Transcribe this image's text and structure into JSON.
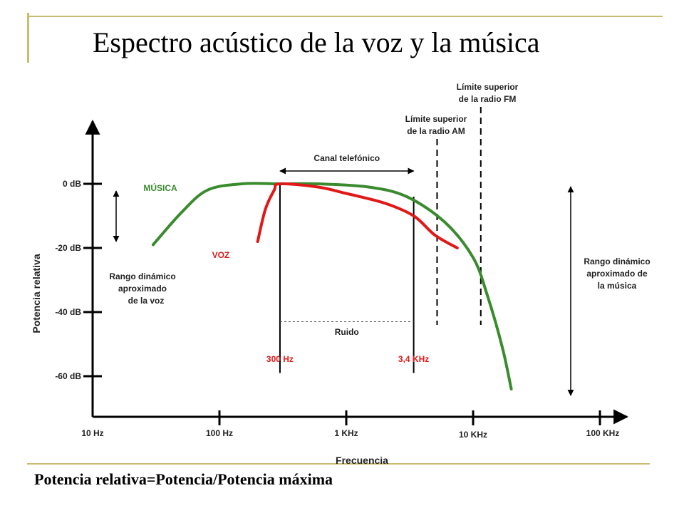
{
  "slide": {
    "title": "Espectro acústico de la voz y la música",
    "footer": "Potencia relativa=Potencia/Potencia máxima",
    "colors": {
      "decoration": "#c9bc6e",
      "music": "#3a8a2e",
      "voice": "#e01818",
      "axis": "#000000"
    }
  },
  "chart_data": {
    "type": "line",
    "title": "Espectro acústico de la voz y la música",
    "xlabel": "Frecuencia",
    "ylabel": "Potencia relativa",
    "x_scale": "log",
    "x_ticks": [
      {
        "value": 10,
        "label": "10 Hz"
      },
      {
        "value": 100,
        "label": "100 Hz"
      },
      {
        "value": 1000,
        "label": "1 KHz"
      },
      {
        "value": 10000,
        "label": "10 KHz"
      },
      {
        "value": 100000,
        "label": "100 KHz"
      }
    ],
    "y_ticks": [
      {
        "value": 0,
        "label": "0 dB"
      },
      {
        "value": -20,
        "label": "-20 dB"
      },
      {
        "value": -40,
        "label": "-40 dB"
      },
      {
        "value": -60,
        "label": "-60 dB"
      }
    ],
    "xlim": [
      10,
      110000
    ],
    "ylim": [
      -72,
      28
    ],
    "series": [
      {
        "name": "MÚSICA",
        "color": "#3a8a2e",
        "points": [
          [
            30,
            -19
          ],
          [
            50,
            -9
          ],
          [
            80,
            -2
          ],
          [
            150,
            0
          ],
          [
            300,
            0
          ],
          [
            600,
            0
          ],
          [
            1500,
            -1
          ],
          [
            3000,
            -4
          ],
          [
            6000,
            -12
          ],
          [
            10000,
            -23
          ],
          [
            13000,
            -35
          ],
          [
            17000,
            -51
          ],
          [
            20000,
            -64
          ]
        ]
      },
      {
        "name": "VOZ",
        "color": "#e01818",
        "points": [
          [
            200,
            -18
          ],
          [
            230,
            -8
          ],
          [
            270,
            -2
          ],
          [
            300,
            0
          ],
          [
            600,
            -1
          ],
          [
            1000,
            -3
          ],
          [
            2000,
            -6
          ],
          [
            3400,
            -10
          ],
          [
            5000,
            -16
          ],
          [
            7500,
            -20
          ]
        ]
      }
    ],
    "vertical_markers": [
      {
        "x": 300,
        "label": "300 Hz",
        "color": "#e01818",
        "y_from": -59,
        "y_to": 0
      },
      {
        "x": 3400,
        "label": "3,4 KHz",
        "color": "#e01818",
        "y_from": -59,
        "y_to": -4
      }
    ],
    "dashed_limits": [
      {
        "x": 5200,
        "label_lines": [
          "Límite superior",
          "de la radio AM"
        ],
        "y_from": -44,
        "y_to": 14
      },
      {
        "x": 11500,
        "label_lines": [
          "Límite superior",
          "de la radio FM"
        ],
        "y_from": -44,
        "y_to": 24
      }
    ],
    "bands": [
      {
        "label": "Canal telefónico",
        "x_from": 300,
        "x_to": 3400,
        "y": 4
      },
      {
        "label": "Ruido",
        "x_from": 300,
        "x_to": 3400,
        "y": -43
      }
    ],
    "annotations": {
      "music_label": "MÚSICA",
      "voice_label": "VOZ",
      "voice_range": {
        "lines": [
          "Rango dinámico",
          "aproximado",
          "de la voz"
        ],
        "y_from": 0,
        "y_to": -18
      },
      "music_range": {
        "lines": [
          "Rango dinámico",
          "aproximado de",
          "la música"
        ],
        "y_from": 0,
        "y_to": -66
      }
    },
    "grid": false,
    "legend": "none"
  }
}
